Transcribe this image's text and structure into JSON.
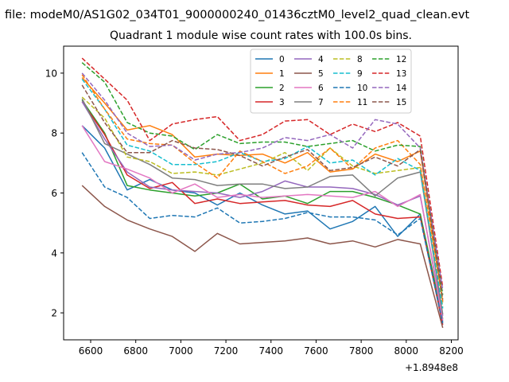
{
  "figure": {
    "suptitle": "file: modeM0/AS1G02_034T01_9000000240_01436cztM0_level2_quad_clean.evt",
    "offset_label": "+1.8948e8"
  },
  "chart_data": {
    "type": "line",
    "title": "Quadrant 1 module wise count rates with 100.0s bins.",
    "xlabel": "",
    "ylabel": "",
    "xlim": [
      6480,
      8230
    ],
    "ylim": [
      1.1,
      10.9
    ],
    "x_offset": 189480000,
    "xticks": [
      6600,
      6800,
      7000,
      7200,
      7400,
      7600,
      7800,
      8000,
      8200
    ],
    "yticks": [
      2,
      4,
      6,
      8,
      10
    ],
    "x": [
      6562,
      6662,
      6762,
      6862,
      6962,
      7062,
      7162,
      7262,
      7362,
      7462,
      7562,
      7662,
      7762,
      7862,
      7962,
      8062,
      8162
    ],
    "legend_position": "upper right",
    "legend_columns": 4,
    "series": [
      {
        "name": "0",
        "color": "#1f77b4",
        "dash": "solid",
        "values": [
          8.25,
          7.5,
          6.1,
          6.45,
          6.1,
          6.0,
          5.6,
          6.0,
          5.6,
          5.3,
          5.4,
          4.8,
          5.05,
          5.55,
          4.55,
          5.3,
          1.7
        ]
      },
      {
        "name": "1",
        "color": "#ff7f0e",
        "dash": "solid",
        "values": [
          9.85,
          9.0,
          8.1,
          8.25,
          7.95,
          7.2,
          7.3,
          7.25,
          7.3,
          7.0,
          7.35,
          6.7,
          6.8,
          7.3,
          7.05,
          7.4,
          2.35
        ]
      },
      {
        "name": "2",
        "color": "#2ca02c",
        "dash": "solid",
        "values": [
          9.1,
          8.0,
          6.25,
          6.1,
          6.0,
          5.9,
          6.0,
          6.3,
          5.8,
          5.9,
          5.65,
          6.05,
          6.05,
          5.85,
          5.6,
          5.3,
          1.8
        ]
      },
      {
        "name": "3",
        "color": "#d62728",
        "dash": "solid",
        "values": [
          9.05,
          7.95,
          6.6,
          6.15,
          6.35,
          5.65,
          5.8,
          5.65,
          5.7,
          5.75,
          5.6,
          5.55,
          5.75,
          5.3,
          5.15,
          5.2,
          1.6
        ]
      },
      {
        "name": "4",
        "color": "#9467bd",
        "dash": "solid",
        "values": [
          9.05,
          7.8,
          6.7,
          6.2,
          6.1,
          6.05,
          6.0,
          5.85,
          6.05,
          6.4,
          6.2,
          6.2,
          6.15,
          5.95,
          5.6,
          5.9,
          1.9
        ]
      },
      {
        "name": "5",
        "color": "#8c564b",
        "dash": "solid",
        "values": [
          6.25,
          5.55,
          5.1,
          4.8,
          4.55,
          4.05,
          4.65,
          4.3,
          4.35,
          4.4,
          4.5,
          4.3,
          4.4,
          4.2,
          4.45,
          4.3,
          1.5
        ]
      },
      {
        "name": "6",
        "color": "#e377c2",
        "dash": "solid",
        "values": [
          8.25,
          7.05,
          6.8,
          6.5,
          6.0,
          6.3,
          5.85,
          5.95,
          5.85,
          5.9,
          5.95,
          5.9,
          5.85,
          6.05,
          5.55,
          5.95,
          1.75
        ]
      },
      {
        "name": "7",
        "color": "#7f7f7f",
        "dash": "solid",
        "values": [
          9.15,
          7.65,
          7.3,
          6.95,
          6.5,
          6.45,
          6.25,
          6.3,
          6.3,
          6.15,
          6.2,
          6.55,
          6.6,
          5.9,
          6.5,
          6.7,
          1.95
        ]
      },
      {
        "name": "8",
        "color": "#bcbd22",
        "dash": "dashed",
        "values": [
          9.2,
          8.5,
          7.2,
          7.05,
          6.65,
          6.7,
          6.6,
          6.8,
          7.0,
          7.35,
          6.75,
          7.5,
          6.9,
          6.65,
          6.75,
          6.85,
          2.2
        ]
      },
      {
        "name": "9",
        "color": "#17becf",
        "dash": "dashed",
        "values": [
          9.8,
          8.8,
          7.6,
          7.4,
          6.95,
          6.95,
          7.05,
          7.35,
          7.05,
          7.15,
          7.55,
          7.0,
          7.1,
          6.6,
          7.15,
          6.75,
          2.15
        ]
      },
      {
        "name": "10",
        "color": "#1f77b4",
        "dash": "dashed",
        "values": [
          7.35,
          6.2,
          5.85,
          5.15,
          5.25,
          5.2,
          5.5,
          5.0,
          5.05,
          5.15,
          5.35,
          5.2,
          5.2,
          5.1,
          4.6,
          5.15,
          1.65
        ]
      },
      {
        "name": "11",
        "color": "#ff7f0e",
        "dash": "dashed",
        "values": [
          9.95,
          8.8,
          7.8,
          7.65,
          7.6,
          7.0,
          6.5,
          7.4,
          7.05,
          6.65,
          6.9,
          7.5,
          6.8,
          7.5,
          7.75,
          6.95,
          2.4
        ]
      },
      {
        "name": "12",
        "color": "#2ca02c",
        "dash": "dashed",
        "values": [
          10.35,
          9.7,
          8.35,
          8.0,
          7.9,
          7.45,
          7.95,
          7.65,
          7.7,
          7.7,
          7.55,
          7.65,
          7.75,
          7.4,
          7.6,
          7.55,
          2.6
        ]
      },
      {
        "name": "13",
        "color": "#d62728",
        "dash": "dashed",
        "values": [
          10.5,
          9.8,
          9.1,
          7.75,
          8.3,
          8.45,
          8.55,
          7.75,
          7.95,
          8.4,
          8.45,
          7.95,
          8.3,
          8.05,
          8.35,
          7.9,
          2.85
        ]
      },
      {
        "name": "14",
        "color": "#9467bd",
        "dash": "dashed",
        "values": [
          10.0,
          9.1,
          8.0,
          7.55,
          7.6,
          7.1,
          7.3,
          7.35,
          7.5,
          7.85,
          7.75,
          7.95,
          7.5,
          8.45,
          8.3,
          7.5,
          2.75
        ]
      },
      {
        "name": "15",
        "color": "#8c564b",
        "dash": "dashed",
        "values": [
          9.6,
          8.35,
          7.35,
          7.35,
          7.75,
          7.5,
          7.45,
          7.25,
          6.9,
          7.2,
          7.45,
          6.75,
          6.85,
          7.2,
          6.9,
          7.45,
          2.45
        ]
      }
    ]
  }
}
